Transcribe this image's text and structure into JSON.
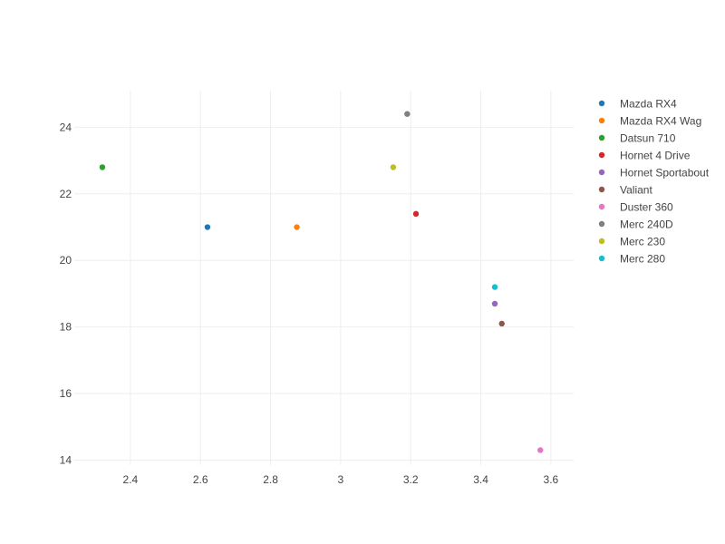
{
  "chart_data": {
    "type": "scatter",
    "xlim": [
      2.24,
      3.665
    ],
    "ylim": [
      13.85,
      25.1
    ],
    "x_ticks": [
      2.4,
      2.6,
      2.8,
      3,
      3.2,
      3.4,
      3.6
    ],
    "x_tick_labels": [
      "2.4",
      "2.6",
      "2.8",
      "3",
      "3.2",
      "3.4",
      "3.6"
    ],
    "y_ticks": [
      14,
      16,
      18,
      20,
      22,
      24
    ],
    "y_tick_labels": [
      "14",
      "16",
      "18",
      "20",
      "22",
      "24"
    ],
    "grid": true,
    "legend_position": "right",
    "series": [
      {
        "name": "Mazda RX4",
        "color": "#1f77b4",
        "x": [
          2.62
        ],
        "y": [
          21.0
        ]
      },
      {
        "name": "Mazda RX4 Wag",
        "color": "#ff7f0e",
        "x": [
          2.875
        ],
        "y": [
          21.0
        ]
      },
      {
        "name": "Datsun 710",
        "color": "#2ca02c",
        "x": [
          2.32
        ],
        "y": [
          22.8
        ]
      },
      {
        "name": "Hornet 4 Drive",
        "color": "#d62728",
        "x": [
          3.215
        ],
        "y": [
          21.4
        ]
      },
      {
        "name": "Hornet Sportabout",
        "color": "#9467bd",
        "x": [
          3.44
        ],
        "y": [
          18.7
        ]
      },
      {
        "name": "Valiant",
        "color": "#8c564b",
        "x": [
          3.46
        ],
        "y": [
          18.1
        ]
      },
      {
        "name": "Duster 360",
        "color": "#e377c2",
        "x": [
          3.57
        ],
        "y": [
          14.3
        ]
      },
      {
        "name": "Merc 240D",
        "color": "#7f7f7f",
        "x": [
          3.19
        ],
        "y": [
          24.4
        ]
      },
      {
        "name": "Merc 230",
        "color": "#bcbd22",
        "x": [
          3.15
        ],
        "y": [
          22.8
        ]
      },
      {
        "name": "Merc 280",
        "color": "#17becf",
        "x": [
          3.44
        ],
        "y": [
          19.2
        ]
      }
    ]
  }
}
